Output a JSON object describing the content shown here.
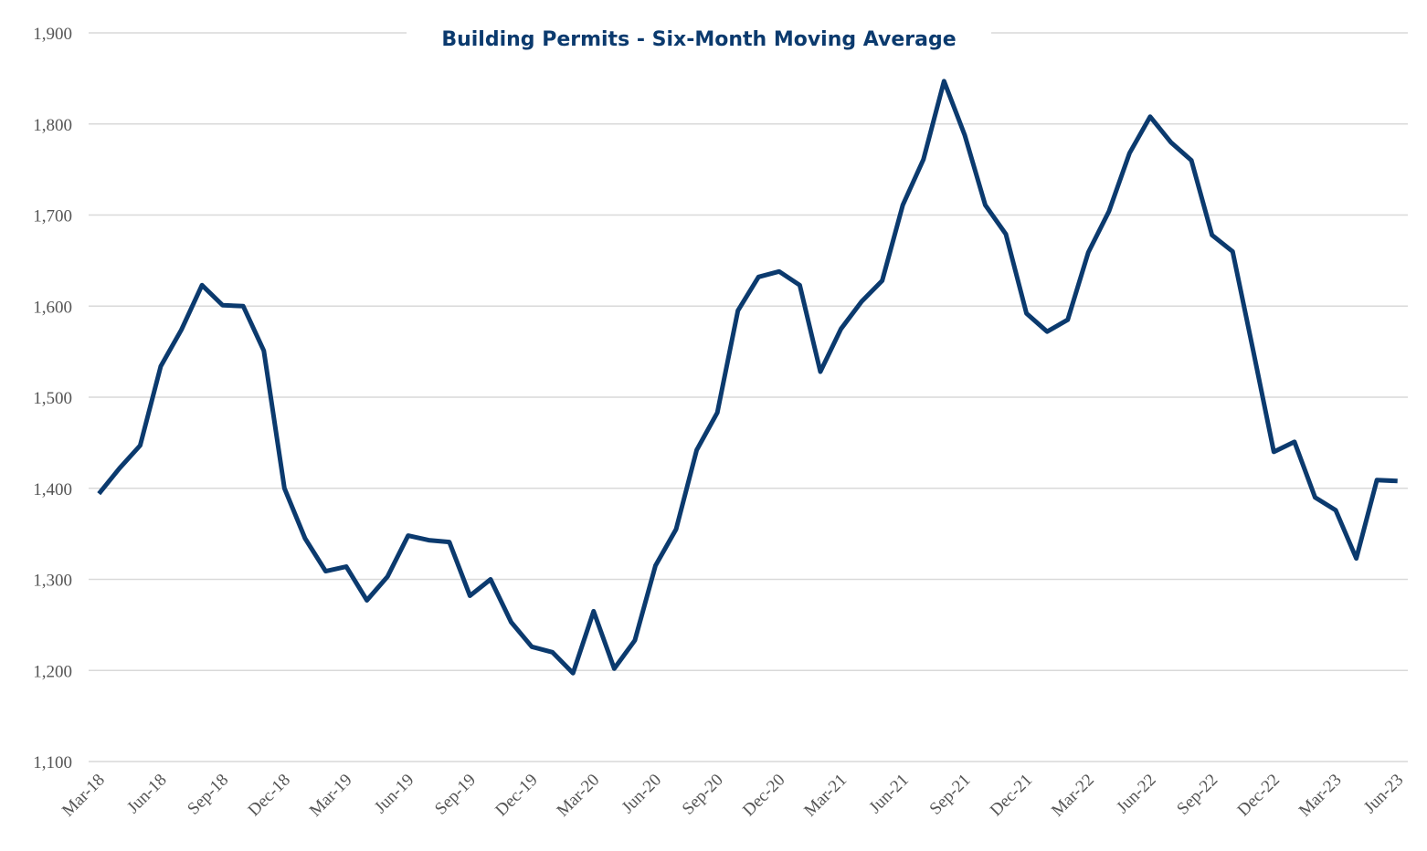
{
  "chart_data": {
    "type": "line",
    "title": "Building Permits - Six-Month Moving Average",
    "categories": [
      "Mar-18",
      null,
      null,
      "Jun-18",
      null,
      null,
      "Sep-18",
      null,
      null,
      "Dec-18",
      null,
      null,
      "Mar-19",
      null,
      null,
      "Jun-19",
      null,
      null,
      "Sep-19",
      null,
      null,
      "Dec-19",
      null,
      null,
      "Mar-20",
      null,
      null,
      "Jun-20",
      null,
      null,
      "Sep-20",
      null,
      null,
      "Dec-20",
      null,
      null,
      "Mar-21",
      null,
      null,
      "Jun-21",
      null,
      null,
      "Sep-21",
      null,
      null,
      "Dec-21",
      null,
      null,
      "Mar-22",
      null,
      null,
      "Jun-22",
      null,
      null,
      "Sep-22",
      null,
      null,
      "Dec-22",
      null,
      null,
      "Mar-23",
      null,
      null,
      "Jun-23"
    ],
    "series": [
      {
        "name": "Building Permits",
        "color": "#0b3a6e",
        "values": [
          1394,
          1422,
          1447,
          1534,
          1574,
          1623,
          1601,
          1600,
          1551,
          1400,
          1345,
          1309,
          1314,
          1277,
          1303,
          1348,
          1343,
          1341,
          1282,
          1300,
          1253,
          1226,
          1220,
          1197,
          1265,
          1202,
          1233,
          1315,
          1355,
          1442,
          1483,
          1595,
          1632,
          1638,
          1623,
          1528,
          1575,
          1605,
          1628,
          1711,
          1761,
          1847,
          1788,
          1711,
          1679,
          1592,
          1572,
          1585,
          1659,
          1704,
          1768,
          1808,
          1780,
          1760,
          1678,
          1660,
          1551,
          1440,
          1451,
          1390,
          1376,
          1323,
          1409,
          1408
        ]
      }
    ],
    "ylim": [
      1100,
      1900
    ],
    "yticks": [
      {
        "value": 1100,
        "label": "1,100"
      },
      {
        "value": 1200,
        "label": "1,200"
      },
      {
        "value": 1300,
        "label": "1,300"
      },
      {
        "value": 1400,
        "label": "1,400"
      },
      {
        "value": 1500,
        "label": "1,500"
      },
      {
        "value": 1600,
        "label": "1,600"
      },
      {
        "value": 1700,
        "label": "1,700"
      },
      {
        "value": 1800,
        "label": "1,800"
      },
      {
        "value": 1900,
        "label": "1,900"
      }
    ],
    "grid": true
  }
}
